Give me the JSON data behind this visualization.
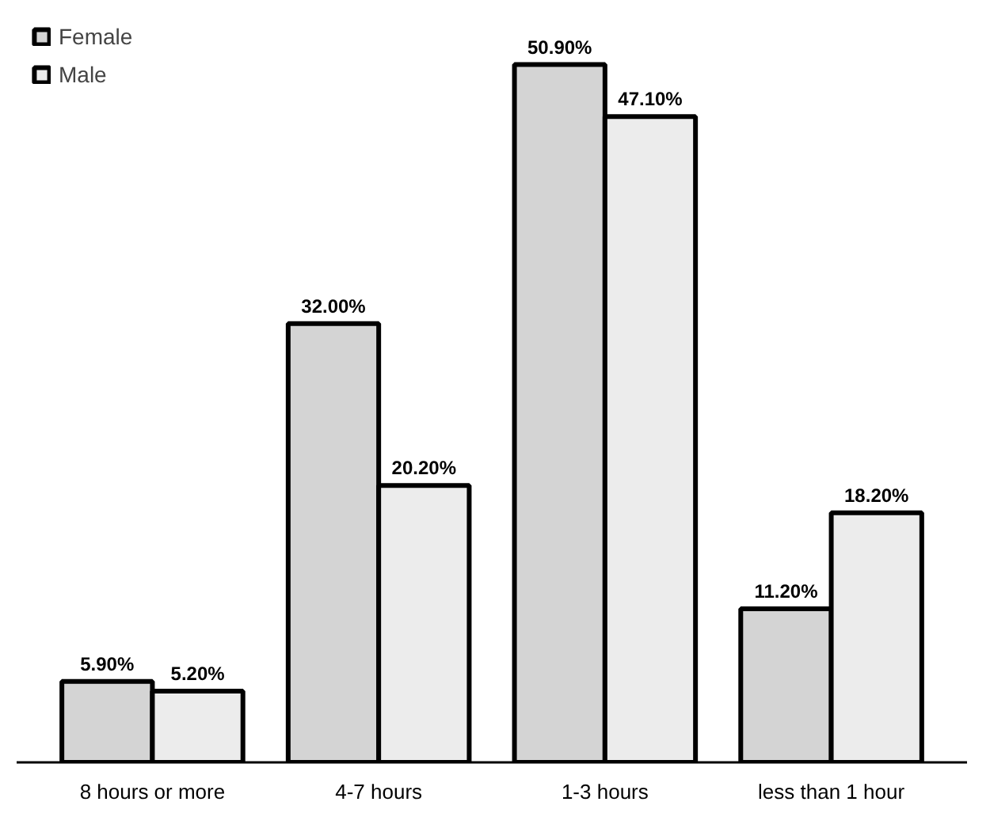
{
  "chart_data": {
    "type": "bar",
    "categories": [
      "8 hours or more",
      "4-7 hours",
      "1-3 hours",
      "less than 1 hour"
    ],
    "series": [
      {
        "name": "Female",
        "color": "#d4d4d4",
        "values": [
          5.9,
          32.0,
          50.9,
          11.2
        ],
        "value_labels": [
          "5.90%",
          "32.00%",
          "50.90%",
          "11.20%"
        ]
      },
      {
        "name": "Male",
        "color": "#ececec",
        "values": [
          5.2,
          20.2,
          47.1,
          18.2
        ],
        "value_labels": [
          "5.20%",
          "20.20%",
          "47.10%",
          "18.20%"
        ]
      }
    ],
    "legend": "top left",
    "grid": false
  }
}
